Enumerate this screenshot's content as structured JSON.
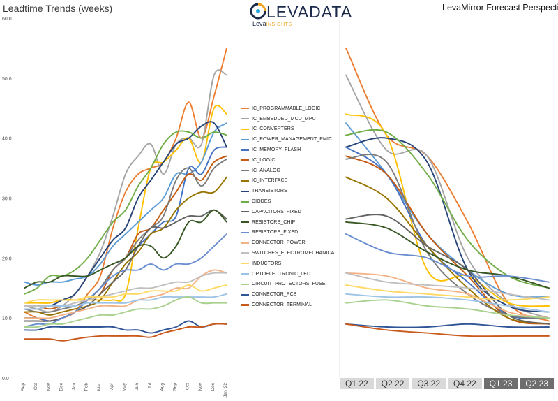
{
  "titles": {
    "left": "Leadtime Trends (weeks)",
    "right": "LevaMirror Forecast Perspecti"
  },
  "logo": {
    "word": "LEVADATA",
    "sub_prefix": "Leva",
    "sub_suffix": "INSIGHTS",
    "colors": {
      "navy": "#1b2a4a",
      "orange": "#f0a21b",
      "blue": "#2aa7e0"
    }
  },
  "quarters": [
    {
      "label": "Q1 22",
      "state": "past"
    },
    {
      "label": "Q2 22",
      "state": "past"
    },
    {
      "label": "Q3 22",
      "state": "past"
    },
    {
      "label": "Q4 22",
      "state": "past"
    },
    {
      "label": "Q1 23",
      "state": "future"
    },
    {
      "label": "Q2 23",
      "state": "future"
    }
  ],
  "chart_data": [
    {
      "type": "line",
      "title": "Leadtime Trends (weeks)",
      "xlabel": "",
      "ylabel": "",
      "ylim": [
        0,
        60
      ],
      "y_ticks": [
        "0.0",
        "10.0",
        "20.0",
        "30.0",
        "40.0",
        "50.0",
        "60.0"
      ],
      "grid": false,
      "legend_placement": "right",
      "x": [
        "Sep",
        "Oct",
        "Nov",
        "Dec",
        "Jan",
        "Feb",
        "Mar",
        "Apr",
        "May",
        "Jun",
        "Jul",
        "Aug",
        "Sep",
        "Oct",
        "Nov",
        "Dec",
        "Jan '22"
      ],
      "series": [
        {
          "name": "IC_PROGRAMMABLE_LOGIC",
          "color": "#ED7D31",
          "values": [
            11,
            10,
            9.5,
            10,
            11,
            14,
            17,
            25,
            31,
            34,
            35,
            36,
            40,
            46,
            40,
            47,
            55
          ]
        },
        {
          "name": "IC_EMBEDDED_MCU_MPU",
          "color": "#A5A5A5",
          "values": [
            12,
            11.5,
            11,
            12,
            14,
            17,
            21,
            27,
            34,
            37,
            39,
            34,
            39,
            40,
            39,
            50.5,
            50.5
          ]
        },
        {
          "name": "IC_CONVERTERS",
          "color": "#FFC000",
          "values": [
            12.5,
            12.5,
            12.5,
            13,
            13,
            13,
            13,
            13,
            14,
            25,
            35,
            36,
            38,
            40,
            36,
            45,
            44
          ]
        },
        {
          "name": "IC_POWER_MANAGEMENT_PMIC",
          "color": "#5B9BD5",
          "values": [
            16,
            15.5,
            16,
            16,
            16.5,
            17,
            19,
            22,
            24,
            26,
            28,
            30,
            34,
            34,
            36,
            41,
            42.5
          ]
        },
        {
          "name": "IC_MEMORY_FLASH",
          "color": "#4472C4",
          "values": [
            10,
            10,
            9.5,
            10,
            11,
            13,
            15,
            18,
            20,
            22,
            24,
            26,
            27,
            35,
            34,
            38,
            38.5
          ]
        },
        {
          "name": "IC_LOGIC",
          "color": "#C55A11",
          "values": [
            12,
            12,
            11.5,
            12,
            12,
            13,
            14,
            18,
            20,
            24,
            25,
            28,
            31,
            34,
            33,
            36,
            37
          ]
        },
        {
          "name": "IC_ANALOG",
          "color": "#7B7B7B",
          "values": [
            11.5,
            11,
            11,
            11.5,
            12,
            13,
            15,
            18,
            20,
            23,
            25,
            27,
            33,
            35,
            32,
            35,
            36.5
          ]
        },
        {
          "name": "IC_INTERFACE",
          "color": "#997300",
          "values": [
            11,
            11,
            10.5,
            11,
            11.5,
            12,
            13,
            16,
            19,
            21,
            24,
            25,
            28,
            30,
            31,
            31,
            33.5
          ]
        },
        {
          "name": "TRANSISTORS",
          "color": "#264478",
          "values": [
            12,
            12,
            12,
            13,
            14,
            17,
            20,
            23,
            25,
            30,
            33,
            36,
            39,
            40,
            42,
            42.5,
            38.5
          ]
        },
        {
          "name": "DIODES",
          "color": "#70AD47",
          "values": [
            14,
            15,
            17,
            17,
            18,
            20,
            23,
            26,
            28,
            32,
            35,
            39,
            41,
            41,
            40,
            41,
            40.5
          ]
        },
        {
          "name": "CAPACITORS_FIXED",
          "color": "#636363",
          "values": [
            9.5,
            9.5,
            9.5,
            10,
            11,
            12,
            14,
            16,
            18,
            22,
            25,
            25,
            26,
            27,
            27,
            28,
            26.5
          ]
        },
        {
          "name": "RESISTORS_CHIP",
          "color": "#375623",
          "values": [
            15,
            16,
            16,
            17,
            17,
            17,
            18,
            19,
            20,
            22,
            22,
            20,
            22,
            26,
            26,
            28,
            26
          ]
        },
        {
          "name": "RESISTORS_FIXED",
          "color": "#698ED0",
          "values": [
            8.5,
            9,
            9,
            10,
            11,
            13,
            15,
            17,
            18,
            18,
            19,
            18,
            19,
            19,
            20,
            22,
            24
          ]
        },
        {
          "name": "CONNECTOR_POWER",
          "color": "#F4B183",
          "values": [
            10,
            10,
            10,
            10.5,
            11,
            11.5,
            12,
            12,
            12,
            13,
            13.5,
            14,
            15,
            15,
            17,
            18,
            17.5
          ]
        },
        {
          "name": "SWITCHES_ELECTROMECHANICAL",
          "color": "#BFBFBF",
          "values": [
            12,
            12,
            12,
            12,
            12.5,
            13,
            13.5,
            14,
            14.5,
            15,
            15,
            15.5,
            16,
            16,
            17,
            17.5,
            17.5
          ]
        },
        {
          "name": "INDUCTORS",
          "color": "#FFD966",
          "values": [
            12.5,
            13,
            13,
            13,
            13,
            13.5,
            13.5,
            13.5,
            14,
            14,
            14.5,
            14.5,
            14.5,
            15.5,
            14.5,
            15,
            15.5
          ]
        },
        {
          "name": "OPTOELECTRONIC_LED",
          "color": "#9DC3E6",
          "values": [
            11.5,
            11.5,
            12,
            12,
            12,
            12.5,
            12.5,
            12.5,
            12.5,
            13,
            13,
            13.5,
            13.5,
            13.5,
            13.5,
            13.5,
            14
          ]
        },
        {
          "name": "CIRCUIT_PROTECTORS_FUSE",
          "color": "#A9D18E",
          "values": [
            8.5,
            8.5,
            9,
            9,
            9.5,
            10,
            10.5,
            10.5,
            11,
            11.5,
            11.5,
            12,
            13,
            13.5,
            12.5,
            12.5,
            12.5
          ]
        },
        {
          "name": "CONNECTOR_PCB",
          "color": "#2F5597",
          "values": [
            8,
            8,
            8.5,
            8.5,
            8.5,
            8.5,
            8.5,
            8.5,
            8,
            8,
            7.5,
            8,
            8.5,
            9.5,
            8.5,
            9,
            9
          ]
        },
        {
          "name": "CONNECTOR_TERMINAL",
          "color": "#C9581B",
          "values": [
            6.5,
            6.5,
            6.5,
            6.2,
            6.5,
            6.8,
            7,
            7,
            7,
            7,
            6.8,
            7.5,
            8,
            8.5,
            8.5,
            9,
            9
          ]
        }
      ]
    },
    {
      "type": "line",
      "title": "LevaMirror Forecast Perspecti",
      "xlabel": "",
      "ylabel": "",
      "ylim": [
        0,
        60
      ],
      "grid": false,
      "x": [
        "Q1 22",
        "Q2 22",
        "Q3 22",
        "Q4 22",
        "Q1 23",
        "Q2 23"
      ],
      "series": [
        {
          "name": "IC_PROGRAMMABLE_LOGIC",
          "values": [
            55,
            40.5,
            37,
            26,
            12.5,
            9.5
          ]
        },
        {
          "name": "IC_EMBEDDED_MCU_MPU",
          "values": [
            50.5,
            38,
            37,
            20,
            12.5,
            10
          ]
        },
        {
          "name": "IC_CONVERTERS",
          "values": [
            44,
            40.5,
            18,
            17,
            12.5,
            12
          ]
        },
        {
          "name": "IC_POWER_MANAGEMENT_PMIC",
          "values": [
            42.5,
            34,
            24,
            18,
            14,
            13.5
          ]
        },
        {
          "name": "IC_MEMORY_FLASH",
          "values": [
            38.5,
            34,
            22,
            16,
            10.5,
            10
          ]
        },
        {
          "name": "IC_LOGIC",
          "values": [
            37,
            34,
            24,
            17,
            10,
            9
          ]
        },
        {
          "name": "IC_ANALOG",
          "values": [
            36.5,
            36,
            21,
            14,
            10.5,
            10
          ]
        },
        {
          "name": "IC_INTERFACE",
          "values": [
            33.5,
            30,
            22,
            15,
            10,
            9
          ]
        },
        {
          "name": "TRANSISTORS",
          "values": [
            38.5,
            40,
            36,
            18,
            12,
            11
          ]
        },
        {
          "name": "DIODES",
          "values": [
            40.5,
            41,
            34,
            23,
            17,
            15
          ]
        },
        {
          "name": "CAPACITORS_FIXED",
          "values": [
            26.5,
            27,
            22,
            18,
            10.5,
            9
          ]
        },
        {
          "name": "RESISTORS_CHIP",
          "values": [
            26,
            25,
            21,
            18,
            17,
            15
          ]
        },
        {
          "name": "RESISTORS_FIXED",
          "values": [
            24,
            21,
            20,
            17,
            17,
            16
          ]
        },
        {
          "name": "CONNECTOR_POWER",
          "values": [
            17.5,
            17,
            15,
            14,
            11,
            10
          ]
        },
        {
          "name": "SWITCHES_ELECTROMECHANICAL",
          "values": [
            17.5,
            16,
            15.5,
            15,
            14,
            13
          ]
        },
        {
          "name": "INDUCTORS",
          "values": [
            15.5,
            14.5,
            14,
            13.5,
            13,
            13.5
          ]
        },
        {
          "name": "OPTOELECTRONIC_LED",
          "values": [
            14,
            13.5,
            13.5,
            13,
            12,
            11
          ]
        },
        {
          "name": "CIRCUIT_PROTECTORS_FUSE",
          "values": [
            12.5,
            13,
            12,
            11.5,
            10.5,
            10
          ]
        },
        {
          "name": "CONNECTOR_PCB",
          "values": [
            9,
            8.5,
            8.5,
            9,
            8.5,
            8.5
          ]
        },
        {
          "name": "CONNECTOR_TERMINAL",
          "values": [
            9,
            8,
            7.5,
            7,
            7,
            7
          ]
        }
      ]
    }
  ]
}
